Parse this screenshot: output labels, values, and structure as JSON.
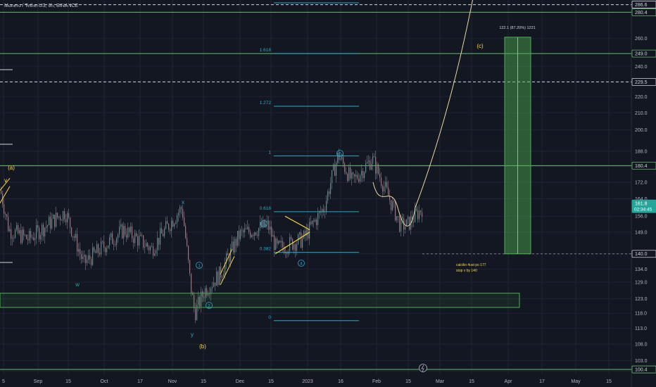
{
  "header": {
    "symbol_line": "Monero / TetherUS, 6h, BINANCE"
  },
  "chart_data": {
    "type": "candlestick",
    "y_axis": {
      "unit": "USDT",
      "ticks": [
        100.0,
        103.0,
        108.0,
        113.0,
        118.0,
        123.0,
        129.0,
        134.0,
        140.0,
        149.0,
        156.0,
        164.0,
        172.0,
        180.0,
        188.0,
        200.0,
        210.0,
        220.0,
        229.5,
        240.0,
        249.0,
        260.0,
        280.4,
        286.6
      ],
      "tick_labels": [
        "100.0",
        "103.0",
        "108.0",
        "113.0",
        "118.0",
        "123.0",
        "129.0",
        "134.0",
        "140.0",
        "149.0",
        "156.0",
        "164.0",
        "172.0",
        "180.0",
        "188.0",
        "200.0",
        "210.0",
        "220.0",
        "229.5",
        "240.0",
        "249.0",
        "260.0",
        "280.4",
        "286.6"
      ],
      "scale": "log",
      "range": [
        99,
        300
      ]
    },
    "x_axis": {
      "labels": [
        "5",
        "Sep",
        "15",
        "Oct",
        "17",
        "Nov",
        "15",
        "Dec",
        "15",
        "2023",
        "16",
        "Feb",
        "15",
        "Mar",
        "15",
        "Apr",
        "17",
        "May",
        "15"
      ]
    },
    "price_badges": [
      {
        "value": 286.6,
        "label": "286.6",
        "style": "white"
      },
      {
        "value": 280.4,
        "label": "280.4",
        "style": "green"
      },
      {
        "value": 249.0,
        "label": "249.0",
        "style": "green"
      },
      {
        "value": 229.5,
        "label": "229.5",
        "style": "white"
      },
      {
        "value": 180.4,
        "label": "180.4",
        "style": "green"
      },
      {
        "value": 161.8,
        "label": "161.8",
        "style": "current"
      },
      {
        "value": 140.0,
        "label": "140.0",
        "style": "white"
      },
      {
        "value": 100.4,
        "label": "100.4",
        "style": "green"
      }
    ],
    "countdown": "02:34:45",
    "horizontal_levels": [
      {
        "value": 286.6,
        "style": "dashed-white"
      },
      {
        "value": 280.4,
        "style": "green"
      },
      {
        "value": 249.0,
        "style": "green"
      },
      {
        "value": 229.5,
        "style": "dashed-white"
      },
      {
        "value": 180.4,
        "style": "green"
      },
      {
        "value": 100.4,
        "style": "green"
      },
      {
        "value": 140.0,
        "style": "dashed-gray"
      }
    ],
    "fibonacci": {
      "levels": [
        {
          "ratio_label": "1.618",
          "value": 249.0
        },
        {
          "ratio_label": "1.272",
          "value": 214.0
        },
        {
          "ratio_label": "1",
          "value": 185.5
        },
        {
          "ratio_label": "0.618",
          "value": 158.0
        },
        {
          "ratio_label": "0.382",
          "value": 140.6
        },
        {
          "ratio_label": "0",
          "value": 115.5
        }
      ]
    },
    "wave_labels": [
      "(a)",
      "v",
      "x",
      "w",
      "y",
      "(b)",
      "(c)",
      "1",
      "2",
      "3",
      "4",
      "5"
    ],
    "support_zone": {
      "low": 120.0,
      "high": 125.0
    },
    "target_box": {
      "low": 140.0,
      "high": 261.0,
      "label": "122.1 (87.20%) 1221"
    },
    "note_lines": [
      "calcilio 4ust po 177",
      "stop v by 140"
    ],
    "series": [
      {
        "name": "Monero / TetherUS",
        "anchors": [
          [
            "5",
            168
          ],
          [
            "Sep",
            150
          ],
          [
            "15",
            160
          ],
          [
            "Oct",
            138
          ],
          [
            "17",
            148
          ],
          [
            "Nov",
            158
          ],
          [
            "15",
            124
          ],
          [
            "Dec",
            150
          ],
          [
            "15",
            140
          ],
          [
            "2023",
            148
          ],
          [
            "16",
            186
          ],
          [
            "Feb",
            172
          ],
          [
            "15",
            152
          ],
          [
            "end",
            162
          ]
        ]
      }
    ],
    "grid": true,
    "legend": "none"
  }
}
